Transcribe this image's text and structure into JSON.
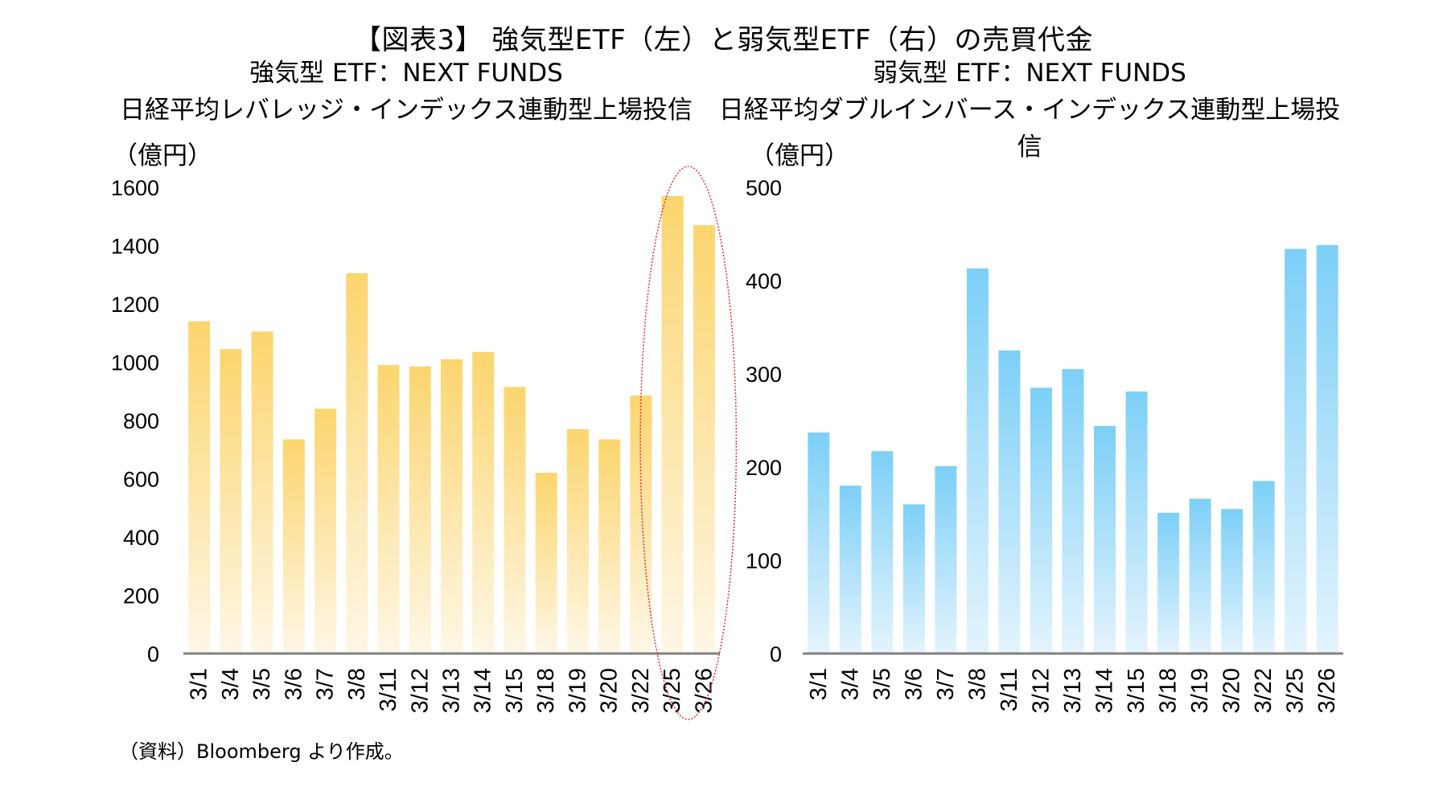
{
  "title": "【図表3】 強気型ETF（左）と弱気型ETF（右）の売買代金",
  "source": "（資料）Bloomberg より作成。",
  "colors": {
    "bull_top": "#fcd56e",
    "bull_bottom": "#fef7e6",
    "bear_top": "#7ccff7",
    "bear_bottom": "#e4f4fd",
    "axis": "#808080",
    "highlight": "#e03030"
  },
  "chart_data": [
    {
      "type": "bar",
      "subtitle_line1": "強気型 ETF：NEXT FUNDS",
      "subtitle_line2": "日経平均レバレッジ・インデックス連動型上場投信",
      "ylabel": "（億円）",
      "ylim": [
        0,
        1600
      ],
      "yticks": [
        0,
        200,
        400,
        600,
        800,
        1000,
        1200,
        1400,
        1600
      ],
      "categories": [
        "3/1",
        "3/4",
        "3/5",
        "3/6",
        "3/7",
        "3/8",
        "3/11",
        "3/12",
        "3/13",
        "3/14",
        "3/15",
        "3/18",
        "3/19",
        "3/20",
        "3/22",
        "3/25",
        "3/26"
      ],
      "values": [
        1140,
        1045,
        1105,
        735,
        840,
        1305,
        990,
        985,
        1010,
        1035,
        915,
        620,
        770,
        735,
        885,
        1570,
        1470
      ],
      "highlight": [
        "3/25",
        "3/26"
      ],
      "grid": false
    },
    {
      "type": "bar",
      "subtitle_line1": "弱気型 ETF：NEXT FUNDS",
      "subtitle_line2": "日経平均ダブルインバース・インデックス連動型上場投信",
      "ylabel": "（億円）",
      "ylim": [
        0,
        500
      ],
      "yticks": [
        0,
        100,
        200,
        300,
        400,
        500
      ],
      "categories": [
        "3/1",
        "3/4",
        "3/5",
        "3/6",
        "3/7",
        "3/8",
        "3/11",
        "3/12",
        "3/13",
        "3/14",
        "3/15",
        "3/18",
        "3/19",
        "3/20",
        "3/22",
        "3/25",
        "3/26"
      ],
      "values": [
        237,
        180,
        217,
        160,
        201,
        413,
        325,
        285,
        305,
        244,
        281,
        151,
        166,
        155,
        185,
        434,
        438
      ],
      "grid": false
    }
  ]
}
